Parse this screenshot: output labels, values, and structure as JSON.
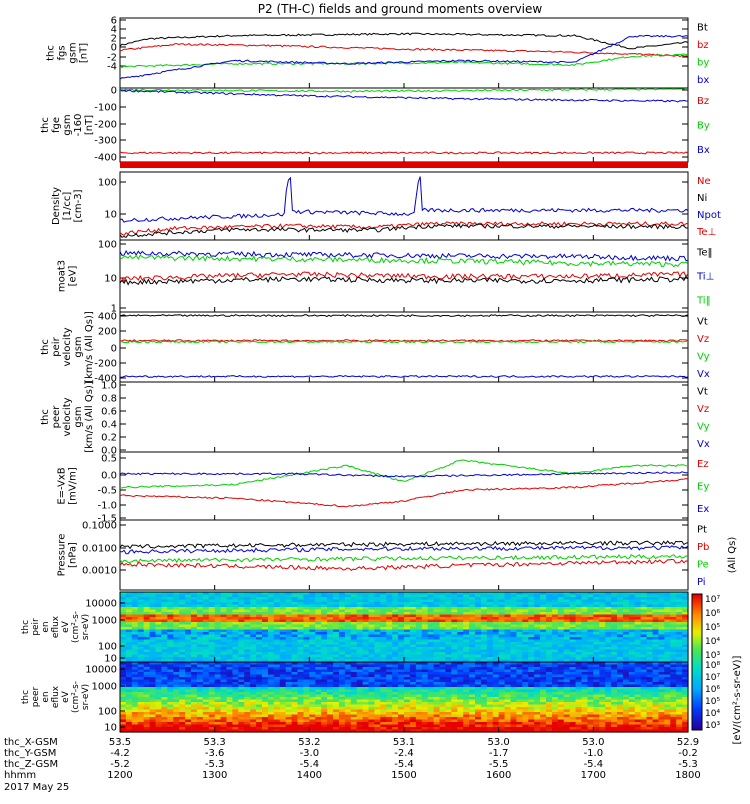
{
  "title": "P2 (TH-C) fields and ground moments overview",
  "colors": {
    "black": "#000000",
    "red": "#e00000",
    "green": "#00d000",
    "blue": "#0000d0"
  },
  "panels": [
    {
      "id": "fgs",
      "ylabel": [
        "thc",
        "fgs",
        "gsm",
        "[nT]"
      ],
      "ticks": [
        "6",
        "4",
        "2",
        "0",
        "-2",
        "-4"
      ],
      "ylim": [
        -5,
        6.5
      ],
      "legend": [
        {
          "label": "Bt",
          "color": "black"
        },
        {
          "label": "bz",
          "color": "red"
        },
        {
          "label": "by",
          "color": "green"
        },
        {
          "label": "bx",
          "color": "blue"
        }
      ],
      "series": [
        {
          "name": "Bt",
          "color": "black",
          "points": [
            [
              0,
              2
            ],
            [
              0.05,
              3.1
            ],
            [
              0.2,
              3.6
            ],
            [
              0.5,
              3.9
            ],
            [
              0.8,
              3.6
            ],
            [
              0.9,
              1.5
            ],
            [
              1,
              2.5
            ]
          ]
        },
        {
          "name": "bz",
          "color": "red",
          "points": [
            [
              0,
              1.2
            ],
            [
              0.1,
              2.2
            ],
            [
              0.25,
              2.0
            ],
            [
              0.5,
              1.4
            ],
            [
              0.75,
              1.0
            ],
            [
              0.9,
              0.6
            ],
            [
              1,
              0.2
            ]
          ]
        },
        {
          "name": "by",
          "color": "green",
          "points": [
            [
              0,
              -1.5
            ],
            [
              0.2,
              -1.0
            ],
            [
              0.4,
              -1.0
            ],
            [
              0.6,
              -0.8
            ],
            [
              0.8,
              -1.2
            ],
            [
              0.9,
              0.2
            ],
            [
              1,
              0.5
            ]
          ]
        },
        {
          "name": "bx",
          "color": "blue",
          "points": [
            [
              0,
              -3.5
            ],
            [
              0.2,
              -0.5
            ],
            [
              0.4,
              -1.0
            ],
            [
              0.6,
              -0.5
            ],
            [
              0.8,
              -0.8
            ],
            [
              0.9,
              3.5
            ],
            [
              1,
              3.5
            ]
          ]
        }
      ]
    },
    {
      "id": "fge",
      "ylabel": [
        "thc",
        "fge",
        "gsm",
        "-160",
        "[nT]"
      ],
      "ticks": [
        "0",
        "-100",
        "-200",
        "-300",
        "-400"
      ],
      "ylim": [
        -440,
        5
      ],
      "legend": [
        {
          "label": "Bz",
          "color": "red"
        },
        {
          "label": "By",
          "color": "green"
        },
        {
          "label": "Bx",
          "color": "blue"
        }
      ],
      "series": [
        {
          "name": "Bz",
          "color": "red",
          "points": [
            [
              0,
              -385
            ],
            [
              1,
              -385
            ]
          ]
        },
        {
          "name": "By",
          "color": "green",
          "points": [
            [
              0,
              -5
            ],
            [
              0.4,
              -15
            ],
            [
              0.7,
              -8
            ],
            [
              1,
              0
            ]
          ]
        },
        {
          "name": "Bx",
          "color": "blue",
          "points": [
            [
              0,
              -10
            ],
            [
              0.3,
              -40
            ],
            [
              0.6,
              -60
            ],
            [
              1,
              -75
            ]
          ]
        }
      ]
    },
    {
      "id": "density",
      "ylabel": [
        "Density",
        "[1/cc]",
        "[cm-3]"
      ],
      "ticks": [
        "100",
        "10"
      ],
      "ylim": [
        0.7,
        300
      ],
      "log": true,
      "legend": [
        {
          "label": "Ne",
          "color": "red"
        },
        {
          "label": "Ni",
          "color": "black"
        },
        {
          "label": "Npot",
          "color": "blue"
        },
        {
          "label": "Te⊥",
          "color": "red"
        }
      ],
      "series": [
        {
          "name": "Npot",
          "color": "blue",
          "points": [
            [
              0,
              4
            ],
            [
              0.22,
              6
            ],
            [
              0.29,
              7
            ],
            [
              0.3,
              200
            ],
            [
              0.3,
              9
            ],
            [
              0.52,
              7
            ],
            [
              0.53,
              200
            ],
            [
              0.53,
              10
            ],
            [
              0.8,
              10
            ],
            [
              1,
              10
            ]
          ]
        },
        {
          "name": "Ne",
          "color": "red",
          "points": [
            [
              0,
              1.2
            ],
            [
              0.1,
              2
            ],
            [
              0.3,
              2.5
            ],
            [
              0.45,
              2.2
            ],
            [
              0.55,
              3
            ],
            [
              0.8,
              3
            ],
            [
              1,
              3
            ]
          ]
        },
        {
          "name": "Ni",
          "color": "black",
          "points": [
            [
              0,
              1.0
            ],
            [
              0.2,
              1.8
            ],
            [
              0.45,
              1.7
            ],
            [
              0.55,
              2.5
            ],
            [
              1,
              2.3
            ]
          ]
        }
      ]
    },
    {
      "id": "temp",
      "ylabel": [
        "moat3",
        "[eV]"
      ],
      "ticks": [
        "100",
        "10",
        "1"
      ],
      "ylim": [
        1,
        150
      ],
      "log": true,
      "legend": [
        {
          "label": "Te‖",
          "color": "black"
        },
        {
          "label": "Ti⊥",
          "color": "blue"
        },
        {
          "label": "Ti‖",
          "color": "green"
        }
      ],
      "series": [
        {
          "name": "Ti⊥",
          "color": "blue",
          "points": [
            [
              0,
              60
            ],
            [
              0.3,
              55
            ],
            [
              0.6,
              50
            ],
            [
              0.8,
              48
            ],
            [
              1,
              42
            ]
          ]
        },
        {
          "name": "Ti‖",
          "color": "green",
          "points": [
            [
              0,
              45
            ],
            [
              0.3,
              40
            ],
            [
              0.6,
              35
            ],
            [
              0.8,
              30
            ],
            [
              1,
              28
            ]
          ]
        },
        {
          "name": "Te⊥",
          "color": "red",
          "points": [
            [
              0,
              10
            ],
            [
              0.3,
              14
            ],
            [
              0.55,
              12
            ],
            [
              0.8,
              12
            ],
            [
              1,
              14
            ]
          ]
        },
        {
          "name": "Te‖",
          "color": "black",
          "points": [
            [
              0,
              8
            ],
            [
              0.3,
              10
            ],
            [
              0.55,
              9
            ],
            [
              0.8,
              9
            ],
            [
              1,
              10
            ]
          ]
        }
      ]
    },
    {
      "id": "peir_v",
      "ylabel": [
        "thc",
        "peir",
        "velocity",
        "gsm",
        "[km/s (All Qs)]"
      ],
      "ticks": [
        "400",
        "200",
        "0",
        "-200",
        "-400"
      ],
      "ylim": [
        -450,
        430
      ],
      "legend": [
        {
          "label": "Vt",
          "color": "black"
        },
        {
          "label": "Vz",
          "color": "red"
        },
        {
          "label": "Vy",
          "color": "green"
        },
        {
          "label": "Vx",
          "color": "blue"
        }
      ],
      "series": [
        {
          "name": "Vt",
          "color": "black",
          "points": [
            [
              0,
              385
            ],
            [
              1,
              385
            ]
          ]
        },
        {
          "name": "Vz",
          "color": "red",
          "points": [
            [
              0,
              70
            ],
            [
              1,
              70
            ]
          ]
        },
        {
          "name": "Vy",
          "color": "green",
          "points": [
            [
              0,
              55
            ],
            [
              1,
              55
            ]
          ]
        },
        {
          "name": "Vx",
          "color": "blue",
          "points": [
            [
              0,
              -380
            ],
            [
              1,
              -380
            ]
          ]
        }
      ]
    },
    {
      "id": "peer_v",
      "ylabel": [
        "thc",
        "peer",
        "velocity",
        "gsm",
        "[km/s (All Qs)]"
      ],
      "ticks": [
        "1.0",
        "0.8",
        "0.6",
        "0.4",
        "0.2",
        "0.0"
      ],
      "ylim": [
        0,
        1
      ],
      "legend": [
        {
          "label": "Vt",
          "color": "black"
        },
        {
          "label": "Vz",
          "color": "red"
        },
        {
          "label": "Vy",
          "color": "green"
        },
        {
          "label": "Vx",
          "color": "blue"
        }
      ],
      "series": []
    },
    {
      "id": "efield",
      "ylabel": [
        "E=-VxB",
        "[mV/m]"
      ],
      "ticks": [
        "0.5",
        "0.0",
        "-0.5",
        "-1.0",
        "-1.5"
      ],
      "ylim": [
        -1.7,
        0.8
      ],
      "legend": [
        {
          "label": "Ez",
          "color": "red"
        },
        {
          "label": "Ey",
          "color": "green"
        },
        {
          "label": "Ex",
          "color": "blue"
        }
      ],
      "series": [
        {
          "name": "Ey",
          "color": "green",
          "points": [
            [
              0,
              -0.5
            ],
            [
              0.2,
              -0.4
            ],
            [
              0.4,
              0.3
            ],
            [
              0.5,
              -0.3
            ],
            [
              0.6,
              0.5
            ],
            [
              0.8,
              0.0
            ],
            [
              0.9,
              0.3
            ],
            [
              1,
              0.3
            ]
          ]
        },
        {
          "name": "Ez",
          "color": "red",
          "points": [
            [
              0,
              -0.8
            ],
            [
              0.2,
              -0.9
            ],
            [
              0.4,
              -1.2
            ],
            [
              0.5,
              -1.0
            ],
            [
              0.6,
              -0.6
            ],
            [
              0.8,
              -0.5
            ],
            [
              1,
              -0.2
            ]
          ]
        },
        {
          "name": "Ex",
          "color": "blue",
          "points": [
            [
              0,
              0.0
            ],
            [
              0.3,
              0.0
            ],
            [
              0.5,
              -0.1
            ],
            [
              0.8,
              0.0
            ],
            [
              1,
              0.05
            ]
          ]
        }
      ]
    },
    {
      "id": "pressure",
      "ylabel": [
        "Pressure",
        "[nPa]"
      ],
      "ticks": [
        "0.1000",
        "0.0100",
        "0.0010"
      ],
      "ylim": [
        0.0003,
        0.15
      ],
      "log": true,
      "legend": [
        {
          "label": "Pt",
          "color": "black"
        },
        {
          "label": "Pb",
          "color": "red"
        },
        {
          "label": "Pe",
          "color": "green"
        },
        {
          "label": "Pi",
          "color": "blue"
        }
      ],
      "side_label": "(All Qs)",
      "series": [
        {
          "name": "Pt",
          "color": "black",
          "points": [
            [
              0,
              0.014
            ],
            [
              0.5,
              0.018
            ],
            [
              1,
              0.02
            ]
          ]
        },
        {
          "name": "Pb",
          "color": "blue",
          "points": [
            [
              0,
              0.009
            ],
            [
              0.5,
              0.012
            ],
            [
              1,
              0.013
            ]
          ]
        },
        {
          "name": "Pe",
          "color": "green",
          "points": [
            [
              0,
              0.004
            ],
            [
              0.5,
              0.005
            ],
            [
              1,
              0.006
            ]
          ]
        },
        {
          "name": "Pi",
          "color": "red",
          "points": [
            [
              0,
              0.003
            ],
            [
              0.4,
              0.002
            ],
            [
              0.7,
              0.003
            ],
            [
              1,
              0.004
            ]
          ]
        }
      ]
    }
  ],
  "spectrograms": [
    {
      "id": "peir_en",
      "ylabel": [
        "thc",
        "peir",
        "en",
        "eflux",
        "eV",
        "(cm²-s-",
        "sr-eV)"
      ],
      "ticks": [
        "10000",
        "1000",
        "100",
        "10"
      ]
    },
    {
      "id": "peer_en",
      "ylabel": [
        "thc",
        "peer",
        "en",
        "eflux",
        "eV",
        "(cm²-s-",
        "sr-eV)"
      ],
      "ticks": [
        "10000",
        "1000",
        "100",
        "10"
      ]
    }
  ],
  "colorbar": {
    "ticks_top": [
      "10⁷",
      "10⁶",
      "10⁵",
      "10⁴",
      "10³"
    ],
    "ticks_bottom": [
      "10⁸",
      "10⁷",
      "10⁶",
      "10⁵",
      "10⁴",
      "10³"
    ],
    "label": "[eV/(cm²-s-sr-eV)]"
  },
  "xaxis": {
    "rows": [
      {
        "label": "thc_X-GSM",
        "values": [
          "53.5",
          "53.3",
          "53.2",
          "53.1",
          "53.0",
          "53.0",
          "52.9"
        ]
      },
      {
        "label": "thc_Y-GSM",
        "values": [
          "-4.2",
          "-3.6",
          "-3.0",
          "-2.4",
          "-1.7",
          "-1.0",
          "-0.2"
        ]
      },
      {
        "label": "thc_Z-GSM",
        "values": [
          "-5.2",
          "-5.3",
          "-5.4",
          "-5.4",
          "-5.5",
          "-5.4",
          "-5.3"
        ]
      },
      {
        "label": "hhmm",
        "values": [
          "1200",
          "1300",
          "1400",
          "1500",
          "1600",
          "1700",
          "1800"
        ]
      }
    ],
    "date": "2017 May 25"
  }
}
